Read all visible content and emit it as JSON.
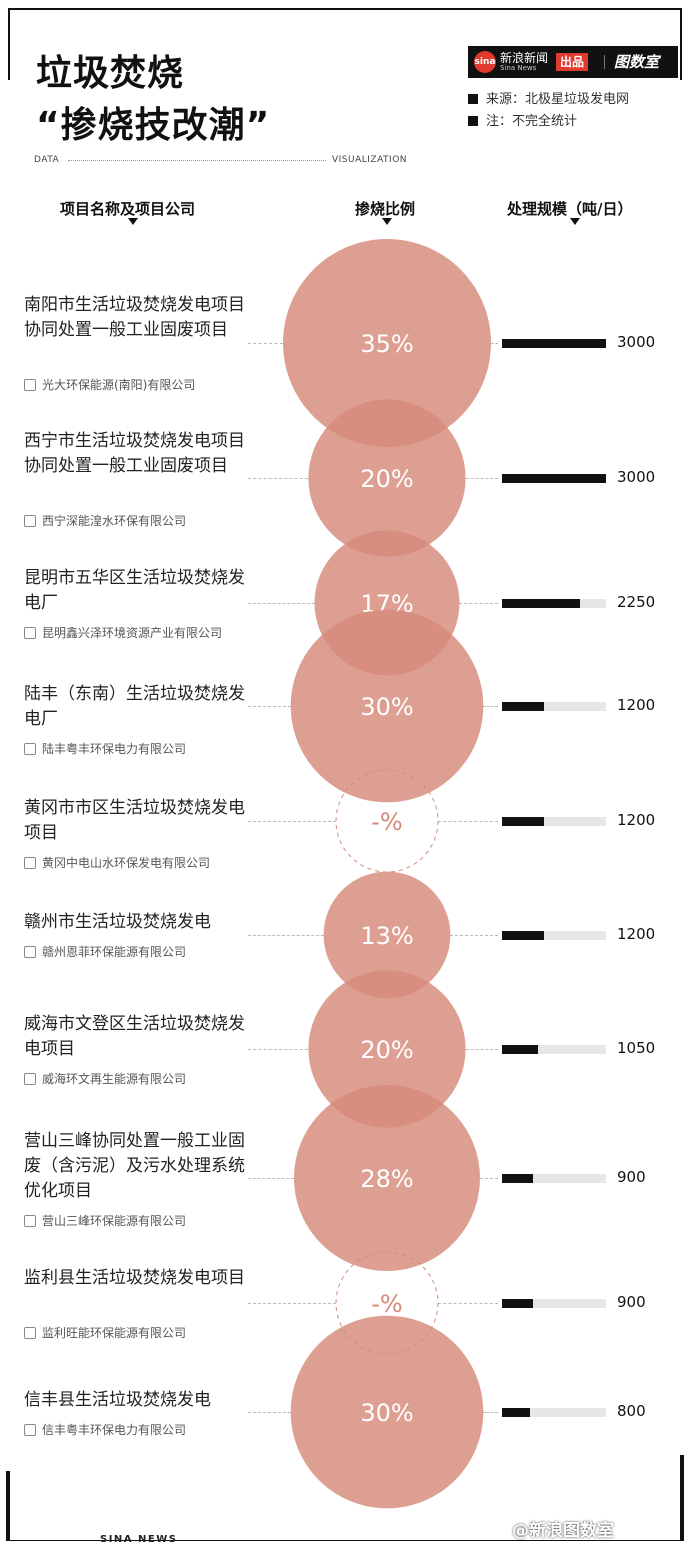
{
  "header": {
    "title_line1": "垃圾焚烧",
    "title_line2": "“掺烧技改潮”",
    "logo": {
      "brand_cn": "新浪新闻",
      "brand_en": "Sina News",
      "sina_mark": "sina",
      "badge": "出品",
      "studio": "图数室"
    },
    "notes": [
      "来源：北极星垃圾发电网",
      "注：不完全统计"
    ],
    "data_label": "DATA",
    "visualization_label": "VISUALIZATION"
  },
  "columns": {
    "project": "项目名称及项目公司",
    "ratio": "掺烧比例",
    "capacity": "处理规模（吨/日）"
  },
  "chart_data": {
    "type": "table",
    "capacity_max": 3000,
    "colors": {
      "bubble": "#d58a7a",
      "bar": "#111111",
      "bar_track": "#e6e6e6"
    },
    "rows": [
      {
        "name": "南阳市生活垃圾焚烧发电项目协同处置一般工业固废项目",
        "company": "光大环保能源(南阳)有限公司",
        "ratio": 35,
        "ratio_label": "35%",
        "capacity": 3000,
        "capacity_label": "3000"
      },
      {
        "name": "西宁市生活垃圾焚烧发电项目协同处置一般工业固废项目",
        "company": "西宁深能湟水环保有限公司",
        "ratio": 20,
        "ratio_label": "20%",
        "capacity": 3000,
        "capacity_label": "3000"
      },
      {
        "name": "昆明市五华区生活垃圾焚烧发电厂",
        "company": "昆明鑫兴泽环境资源产业有限公司",
        "ratio": 17,
        "ratio_label": "17%",
        "capacity": 2250,
        "capacity_label": "2250"
      },
      {
        "name": "陆丰（东南）生活垃圾焚烧发电厂",
        "company": "陆丰粤丰环保电力有限公司",
        "ratio": 30,
        "ratio_label": "30%",
        "capacity": 1200,
        "capacity_label": "1200"
      },
      {
        "name": "黄冈市市区生活垃圾焚烧发电项目",
        "company": "黄冈中电山水环保发电有限公司",
        "ratio": null,
        "ratio_label": "-%",
        "capacity": 1200,
        "capacity_label": "1200"
      },
      {
        "name": "赣州市生活垃圾焚烧发电",
        "company": "赣州恩菲环保能源有限公司",
        "ratio": 13,
        "ratio_label": "13%",
        "capacity": 1200,
        "capacity_label": "1200"
      },
      {
        "name": "威海市文登区生活垃圾焚烧发电项目",
        "company": "威海环文再生能源有限公司",
        "ratio": 20,
        "ratio_label": "20%",
        "capacity": 1050,
        "capacity_label": "1050"
      },
      {
        "name": "营山三峰协同处置一般工业固废（含污泥）及污水处理系统优化项目",
        "company": "营山三峰环保能源有限公司",
        "ratio": 28,
        "ratio_label": "28%",
        "capacity": 900,
        "capacity_label": "900"
      },
      {
        "name": "监利县生活垃圾焚烧发电项目",
        "company": "监利旺能环保能源有限公司",
        "ratio": null,
        "ratio_label": "-%",
        "capacity": 900,
        "capacity_label": "900"
      },
      {
        "name": "信丰县生活垃圾焚烧发电",
        "company": "信丰粤丰环保电力有限公司",
        "ratio": 30,
        "ratio_label": "30%",
        "capacity": 800,
        "capacity_label": "800"
      }
    ]
  },
  "footer": {
    "left": "SINA NEWS",
    "right": "@新浪图数室"
  }
}
